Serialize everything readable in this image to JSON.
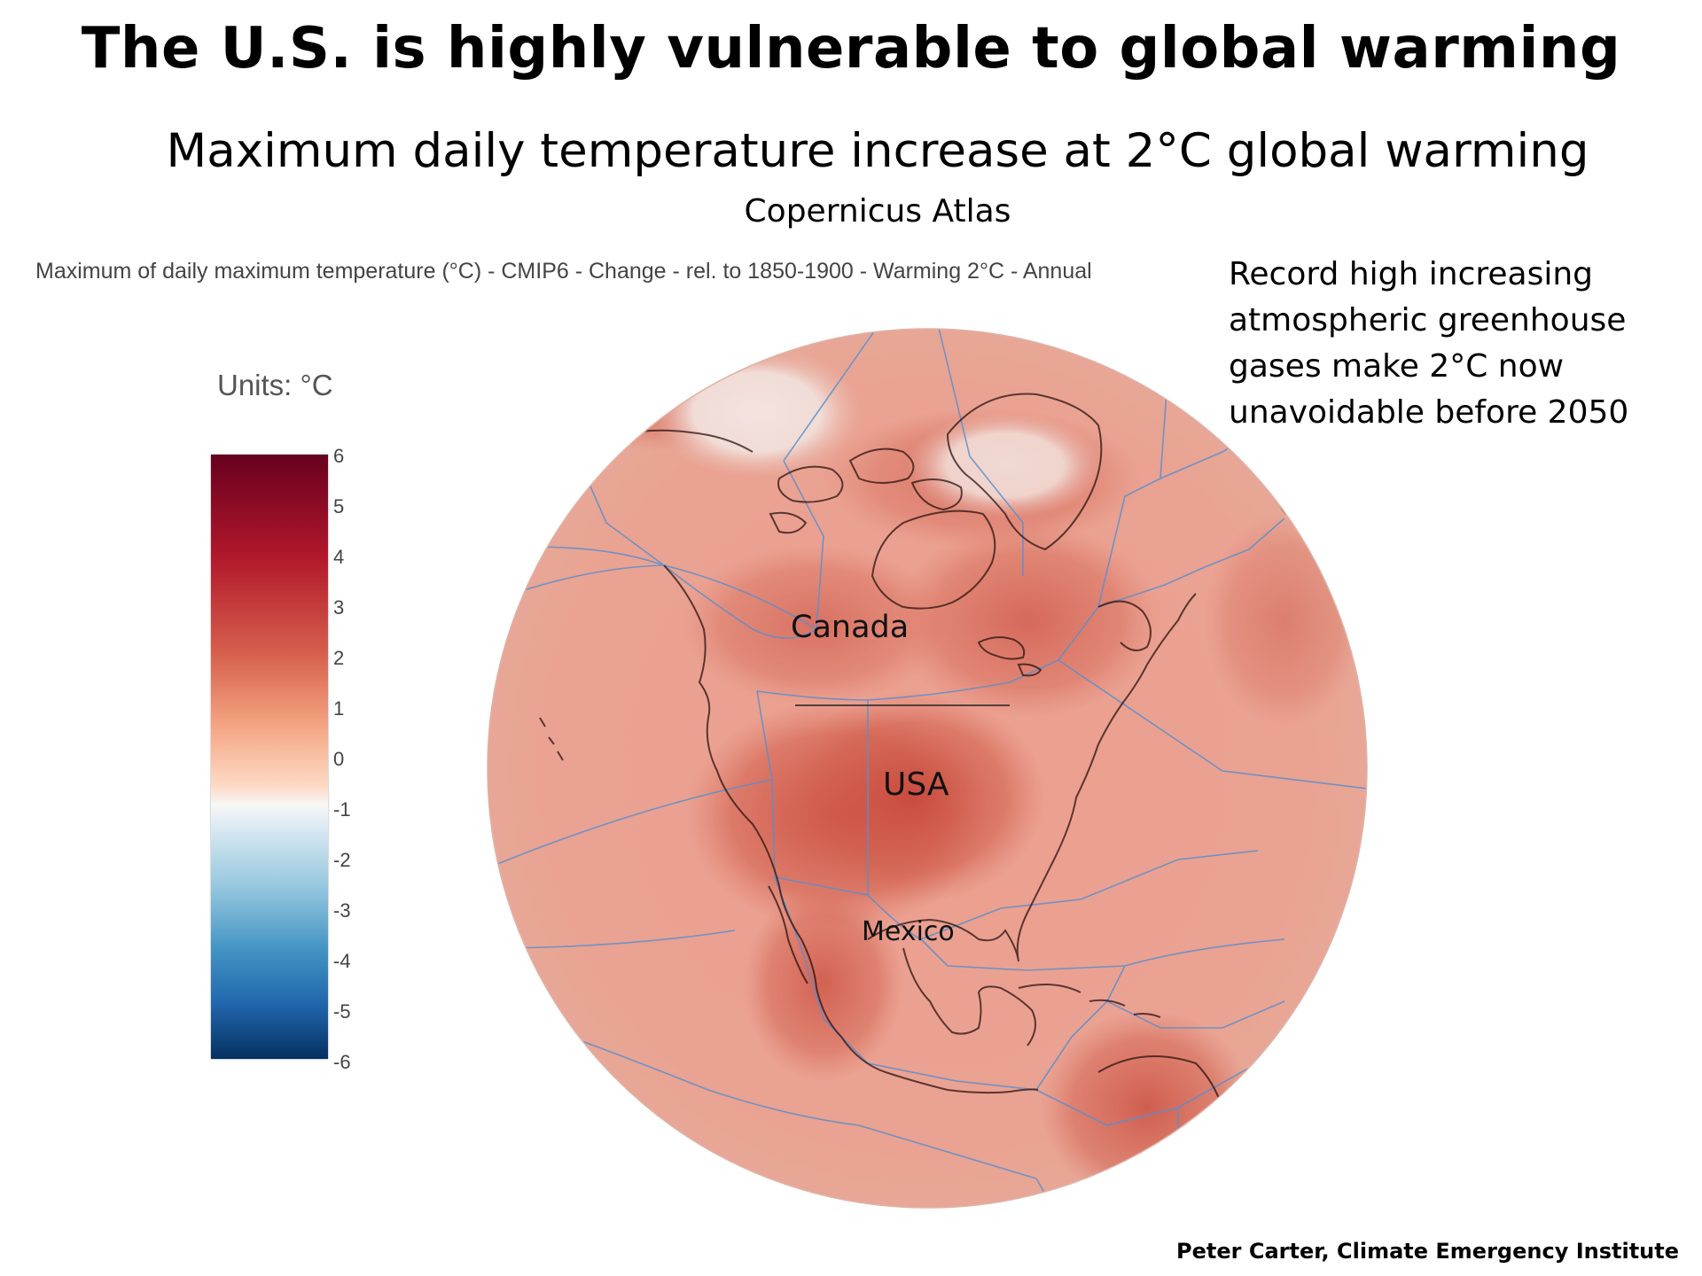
{
  "title": "The U.S. is highly vulnerable to global warming",
  "subtitle": "Maximum daily temperature increase at 2°C global warming",
  "source": "Copernicus Atlas",
  "map_caption": "Maximum of daily maximum temperature (°C) - CMIP6 - Change - rel. to 1850-1900 - Warming 2°C - Annual",
  "note_lines": [
    "Record high increasing",
    "atmospheric greenhouse",
    "gases make 2°C now",
    "unavoidable before 2050"
  ],
  "legend": {
    "units": "Units: °C",
    "ticks": [
      "6",
      "5",
      "4",
      "3",
      "2",
      "1",
      "0",
      "-1",
      "-2",
      "-3",
      "-4",
      "-5",
      "-6"
    ],
    "colors": [
      "#67001f",
      "#b2182b",
      "#d6604d",
      "#f4a582",
      "#fddbc7",
      "#f7f7f7",
      "#d1e5f0",
      "#92c5de",
      "#4393c3",
      "#2166ac",
      "#053061"
    ]
  },
  "labels": {
    "canada": "Canada",
    "usa": "USA",
    "mexico": "Mexico"
  },
  "credit": "Peter Carter, Climate Emergency Institute"
}
